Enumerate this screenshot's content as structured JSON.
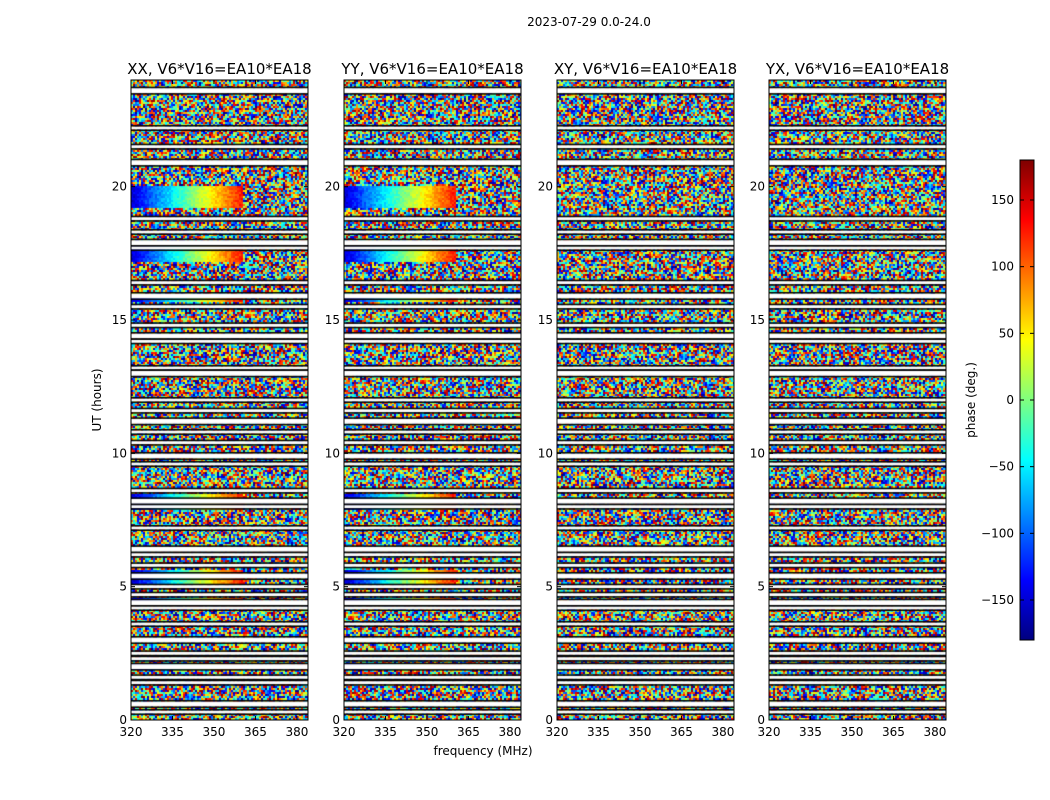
{
  "chart_data": {
    "type": "heatmap",
    "suptitle": "2023-07-29 0.0-24.0",
    "xlabel": "frequency (MHz)",
    "ylabel": "UT (hours)",
    "xlim": [
      320,
      384
    ],
    "ylim": [
      0,
      24
    ],
    "xticks": [
      320,
      335,
      350,
      365,
      380
    ],
    "yticks": [
      0,
      5,
      10,
      15,
      20
    ],
    "panels": [
      {
        "title": "XX, V6*V16=EA10*EA18",
        "coherent": true
      },
      {
        "title": "YY, V6*V16=EA10*EA18",
        "coherent": true
      },
      {
        "title": "XY, V6*V16=EA10*EA18",
        "coherent": false
      },
      {
        "title": "YX, V6*V16=EA10*EA18",
        "coherent": false
      }
    ],
    "colorbar": {
      "label": "phase (deg.)",
      "range": [
        -180,
        180
      ],
      "ticks": [
        {
          "value": 150,
          "text": "150"
        },
        {
          "value": 100,
          "text": "100"
        },
        {
          "value": 50,
          "text": "50"
        },
        {
          "value": 0,
          "text": "0"
        },
        {
          "value": -50,
          "text": "−50"
        },
        {
          "value": -100,
          "text": "−100"
        },
        {
          "value": -150,
          "text": "−150"
        }
      ],
      "colormap": "jet",
      "colors": [
        "#00007f",
        "#0000ff",
        "#007fff",
        "#00ffff",
        "#7fff7f",
        "#ffff00",
        "#ff7f00",
        "#ff0000",
        "#7f0000"
      ]
    },
    "gap_rows_hours": [
      23.6,
      22.2,
      21.5,
      20.9,
      18.8,
      18.3,
      17.9,
      17.7,
      16.4,
      15.9,
      15.5,
      14.8,
      14.4,
      14.2,
      13.2,
      13.0,
      12.0,
      11.6,
      11.2,
      10.8,
      10.4,
      9.9,
      9.6,
      8.6,
      8.2,
      8.0,
      7.2,
      6.4,
      6.2,
      5.8,
      5.4,
      5.0,
      4.7,
      4.4,
      4.2,
      3.6,
      3.0,
      2.5,
      2.3,
      2.0,
      1.6,
      1.4,
      0.6,
      0.3
    ],
    "coherent_bands_hours": [
      {
        "from": 19.2,
        "to": 20.0
      },
      {
        "from": 17.2,
        "to": 17.8
      },
      {
        "from": 15.7,
        "to": 16.0
      },
      {
        "from": 7.9,
        "to": 8.5
      },
      {
        "from": 5.1,
        "to": 5.6
      },
      {
        "from": 4.3,
        "to": 4.6
      },
      {
        "from": 1.9,
        "to": 2.1
      }
    ]
  }
}
